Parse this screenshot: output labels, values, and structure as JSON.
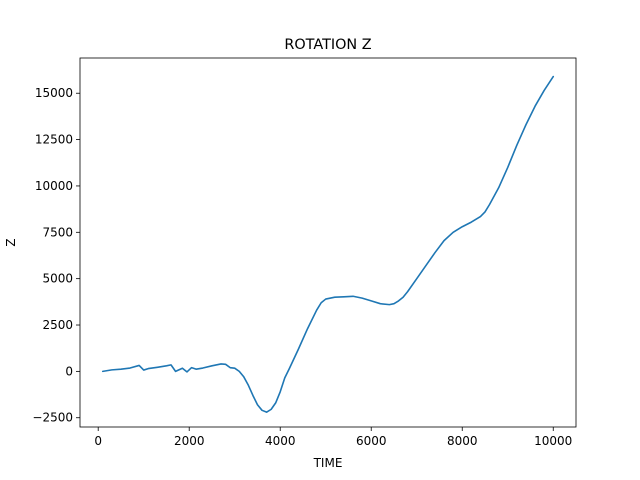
{
  "chart_data": {
    "type": "line",
    "title": "ROTATION Z",
    "xlabel": "TIME",
    "ylabel": "Z",
    "xlim": [
      -400,
      10500
    ],
    "ylim": [
      -3000,
      16900
    ],
    "xticks": [
      0,
      2000,
      4000,
      6000,
      8000,
      10000
    ],
    "xtick_labels": [
      "0",
      "2000",
      "4000",
      "6000",
      "8000",
      "10000"
    ],
    "yticks": [
      -2500,
      0,
      2500,
      5000,
      7500,
      10000,
      12500,
      15000
    ],
    "ytick_labels": [
      "−2500",
      "0",
      "2500",
      "5000",
      "7500",
      "10000",
      "12500",
      "15000"
    ],
    "grid": false,
    "series": [
      {
        "color": "#1f77b4",
        "x": [
          100,
          300,
          500,
          700,
          900,
          1000,
          1100,
          1300,
          1500,
          1600,
          1700,
          1850,
          1950,
          2050,
          2150,
          2300,
          2500,
          2700,
          2800,
          2900,
          3000,
          3100,
          3200,
          3300,
          3400,
          3500,
          3600,
          3700,
          3800,
          3900,
          4000,
          4100,
          4200,
          4400,
          4600,
          4800,
          4900,
          5000,
          5200,
          5400,
          5600,
          5800,
          6000,
          6200,
          6400,
          6500,
          6600,
          6700,
          6800,
          7000,
          7200,
          7400,
          7600,
          7800,
          8000,
          8200,
          8400,
          8500,
          8600,
          8800,
          9000,
          9200,
          9400,
          9600,
          9800,
          10000
        ],
        "y": [
          0,
          80,
          120,
          180,
          320,
          70,
          150,
          220,
          300,
          350,
          0,
          170,
          -30,
          200,
          120,
          180,
          300,
          400,
          380,
          200,
          170,
          0,
          -300,
          -750,
          -1300,
          -1800,
          -2100,
          -2200,
          -2050,
          -1700,
          -1100,
          -350,
          150,
          1200,
          2300,
          3300,
          3700,
          3900,
          4000,
          4020,
          4050,
          3950,
          3800,
          3650,
          3600,
          3650,
          3800,
          4000,
          4300,
          5000,
          5700,
          6400,
          7050,
          7500,
          7800,
          8050,
          8350,
          8600,
          9000,
          9900,
          11000,
          12200,
          13300,
          14300,
          15150,
          15900
        ]
      }
    ]
  }
}
